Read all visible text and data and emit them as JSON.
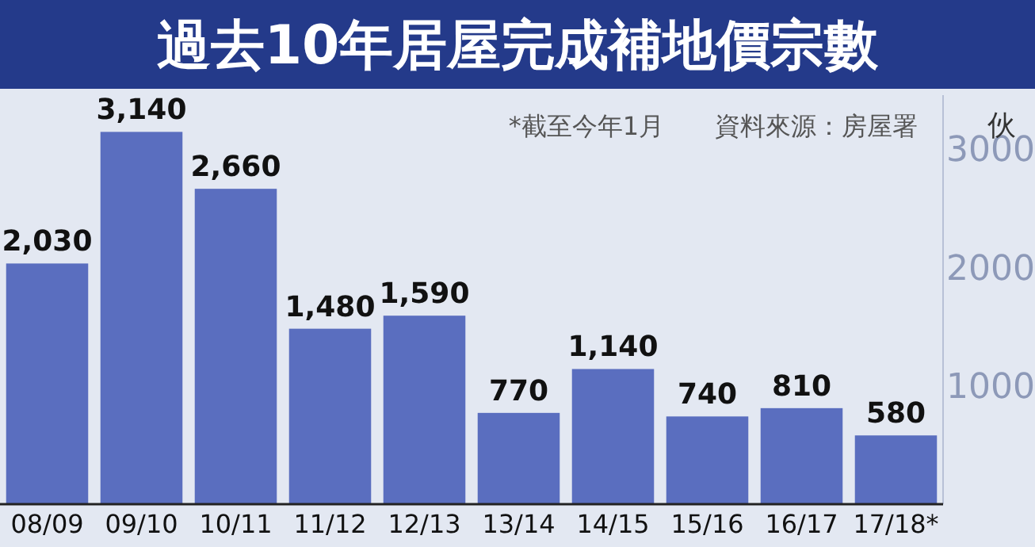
{
  "chart_data": {
    "type": "bar",
    "title": "過去10年居屋完成補地價宗數",
    "ylabel": "伙",
    "annotations": [
      "*截至今年1月",
      "資料來源：房屋署"
    ],
    "categories": [
      "08/09",
      "09/10",
      "10/11",
      "11/12",
      "12/13",
      "13/14",
      "14/15",
      "15/16",
      "16/17",
      "17/18*"
    ],
    "values": [
      2030,
      3140,
      2660,
      1480,
      1590,
      770,
      1140,
      740,
      810,
      580
    ],
    "value_labels": [
      "2,030",
      "3,140",
      "2,660",
      "1,480",
      "1,590",
      "770",
      "1,140",
      "740",
      "810",
      "580"
    ],
    "color": "#5a6ebf",
    "ylim": [
      0,
      3450
    ],
    "yticks": [
      1000,
      2000,
      3000
    ],
    "grid": false
  }
}
